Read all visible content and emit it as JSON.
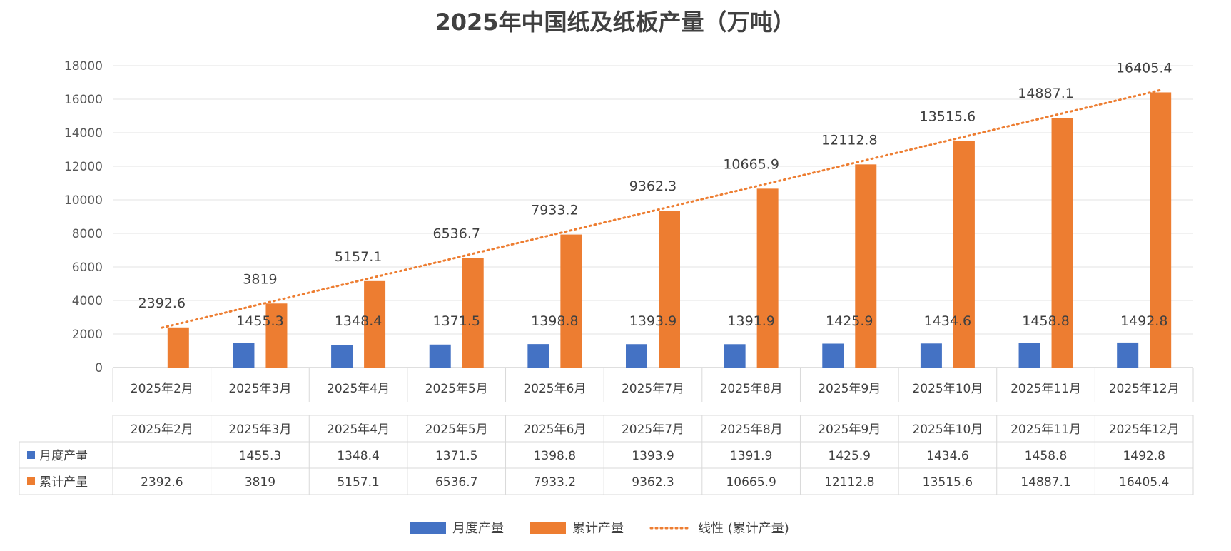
{
  "chart_data": {
    "type": "bar",
    "title": "2025年中国纸及纸板产量（万吨）",
    "categories": [
      "2025年2月",
      "2025年3月",
      "2025年4月",
      "2025年5月",
      "2025年6月",
      "2025年7月",
      "2025年8月",
      "2025年9月",
      "2025年10月",
      "2025年11月",
      "2025年12月"
    ],
    "series": [
      {
        "name": "月度产量",
        "color": "#4472C4",
        "values": [
          null,
          1455.3,
          1348.4,
          1371.5,
          1398.8,
          1393.9,
          1391.9,
          1425.9,
          1434.6,
          1458.8,
          1492.8
        ],
        "labels": [
          "",
          "1455.3",
          "1348.4",
          "1371.5",
          "1398.8",
          "1393.9",
          "1391.9",
          "1425.9",
          "1434.6",
          "1458.8",
          "1492.8"
        ]
      },
      {
        "name": "累计产量",
        "color": "#ED7D31",
        "values": [
          2392.6,
          3819,
          5157.1,
          6536.7,
          7933.2,
          9362.3,
          10665.9,
          12112.8,
          13515.6,
          14887.1,
          16405.4
        ],
        "labels": [
          "2392.6",
          "3819",
          "5157.1",
          "6536.7",
          "7933.2",
          "9362.3",
          "10665.9",
          "12112.8",
          "13515.6",
          "14887.1",
          "16405.4"
        ]
      }
    ],
    "trendline": {
      "name": "线性 (累计产量)",
      "type": "linear",
      "of_series": "累计产量",
      "color": "#ED7D31"
    },
    "ylim": [
      0,
      18000
    ],
    "yticks": [
      0,
      2000,
      4000,
      6000,
      8000,
      10000,
      12000,
      14000,
      16000,
      18000
    ],
    "ytick_labels": [
      "0",
      "2000",
      "4000",
      "6000",
      "8000",
      "10000",
      "12000",
      "14000",
      "16000",
      "18000"
    ],
    "xlabel": "",
    "ylabel": "",
    "grid": true,
    "legend_position": "bottom",
    "data_table": true
  }
}
